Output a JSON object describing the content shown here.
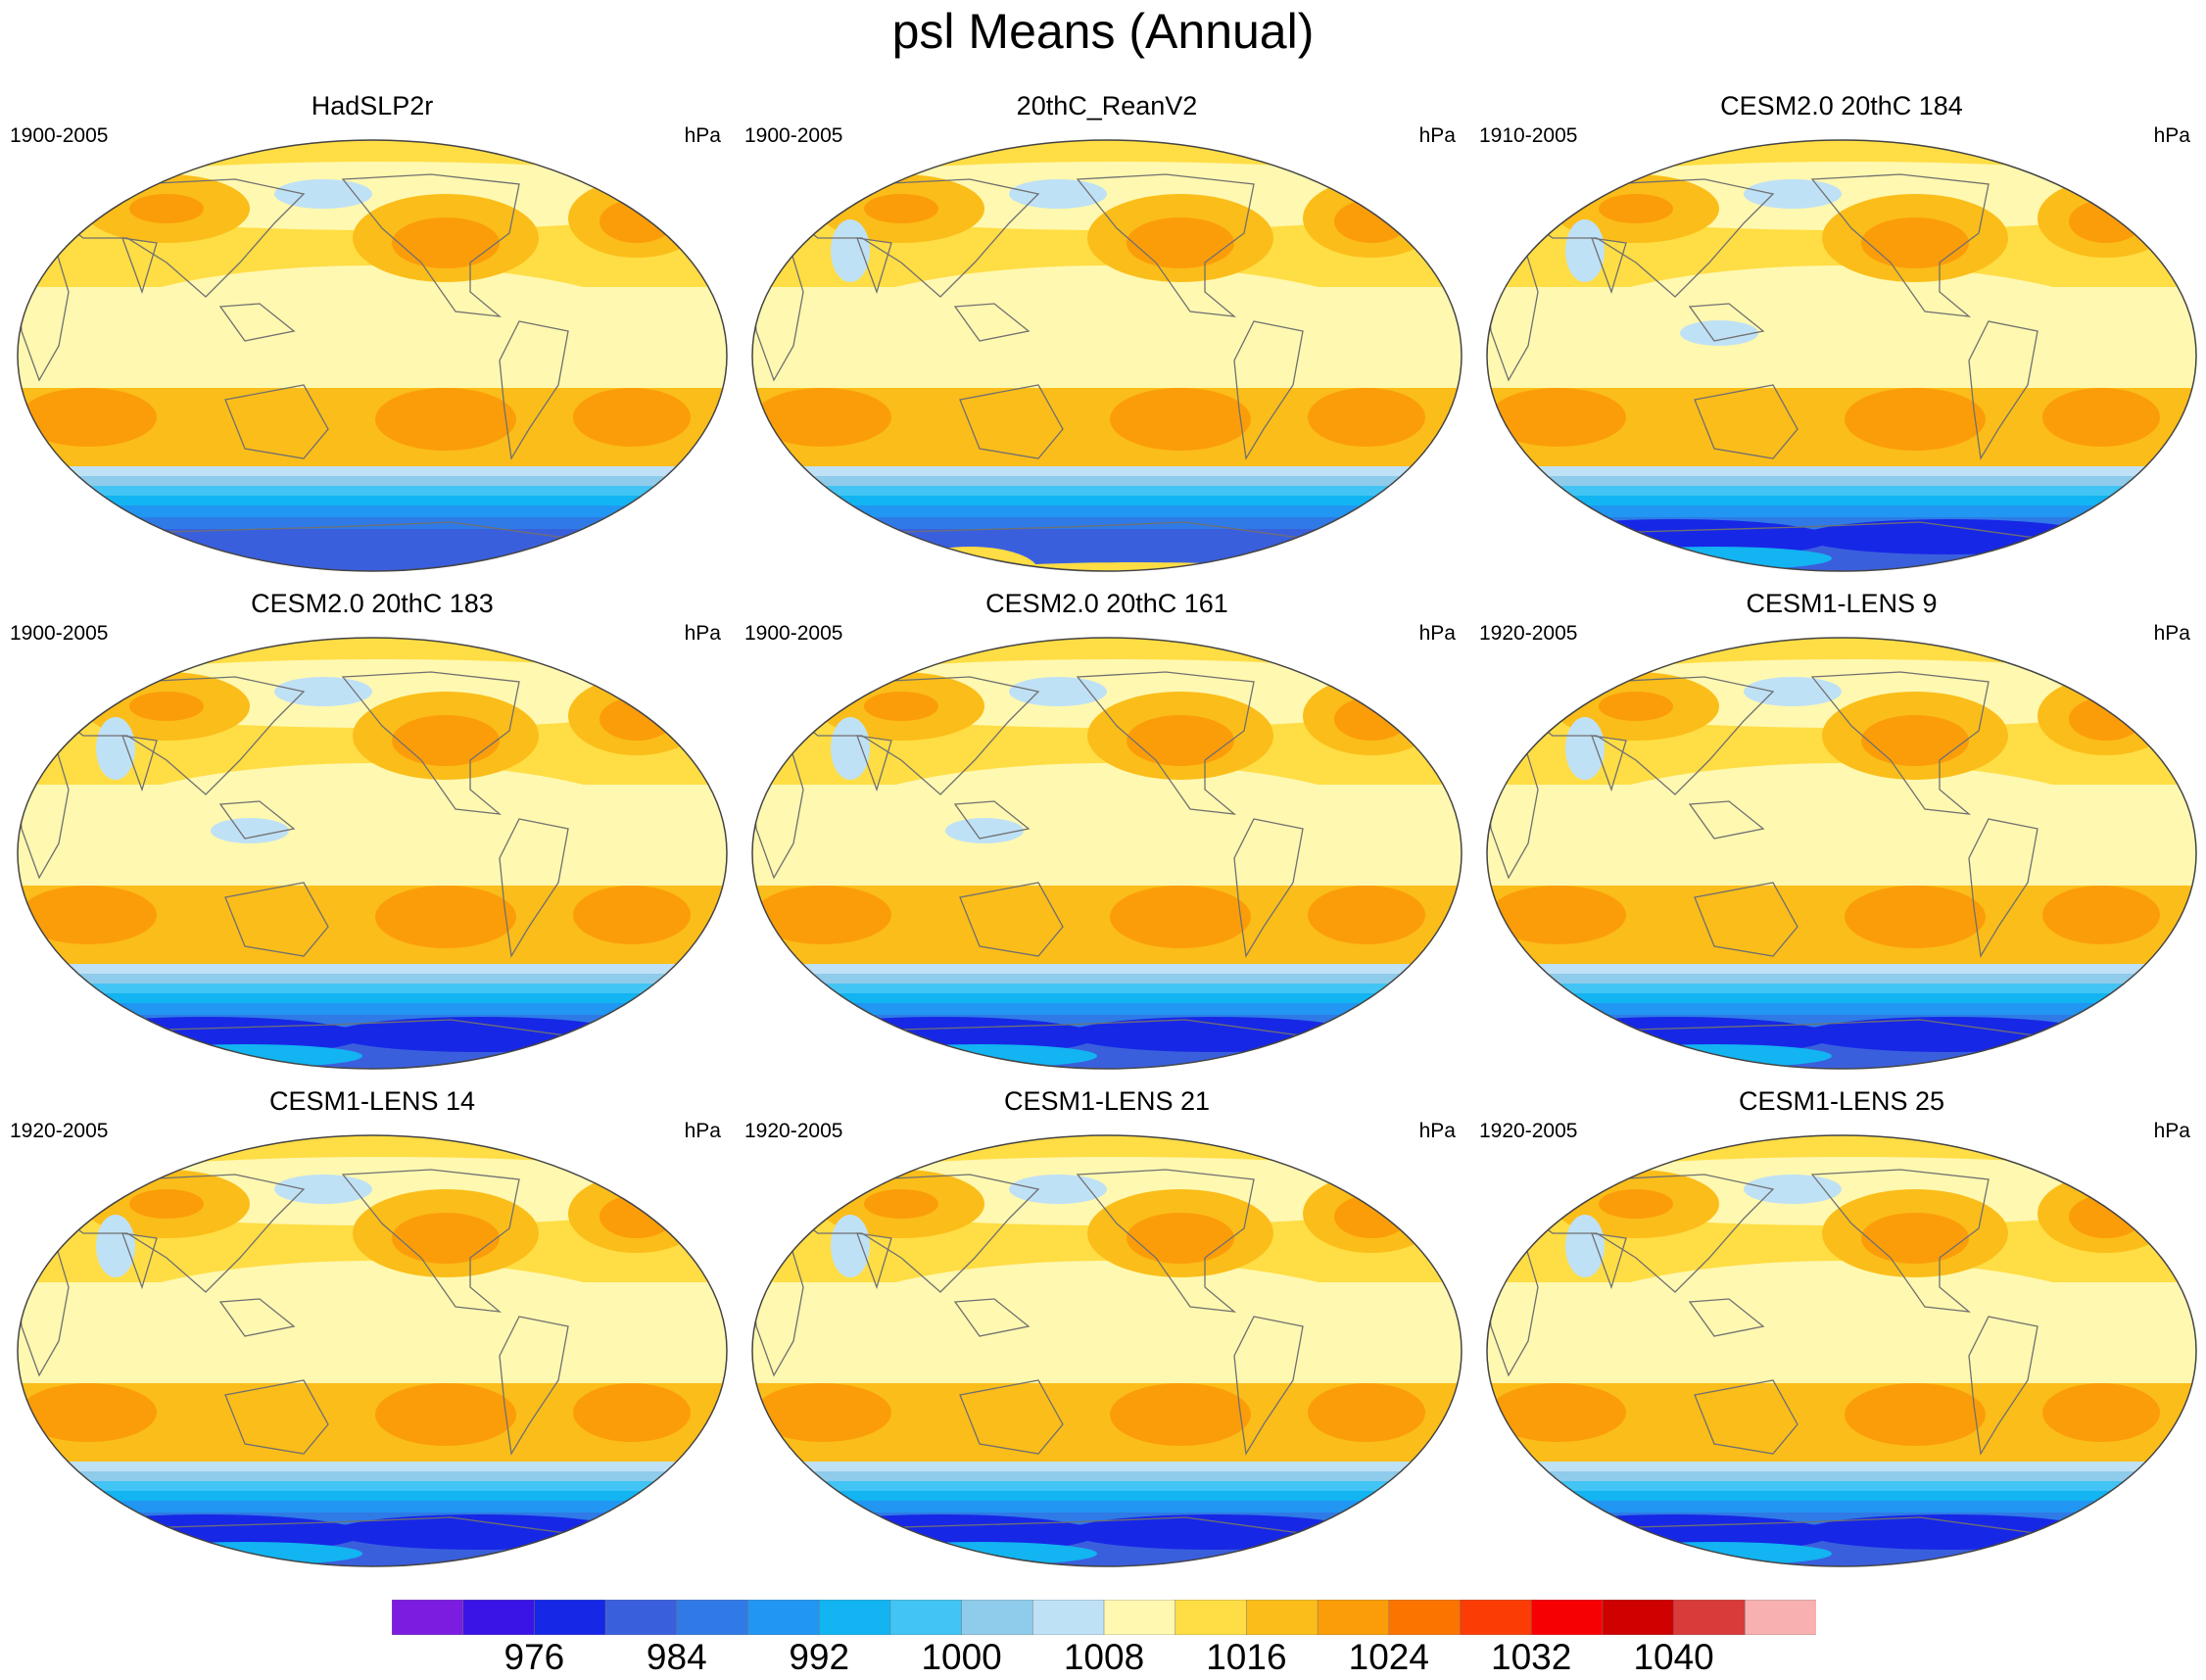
{
  "title": "psl Means (Annual)",
  "chart_data": {
    "type": "heatmap",
    "description_kind": "global mean sea level pressure maps, Robinson-like projection",
    "variable": "psl",
    "units": "hPa",
    "panels": [
      {
        "title": "HadSLP2r",
        "period": "1900-2005",
        "units": "hPa",
        "variant": "obs"
      },
      {
        "title": "20thC_ReanV2",
        "period": "1900-2005",
        "units": "hPa",
        "variant": "rean"
      },
      {
        "title": "CESM2.0 20thC 184",
        "period": "1910-2005",
        "units": "hPa",
        "variant": "cesm2"
      },
      {
        "title": "CESM2.0 20thC 183",
        "period": "1900-2005",
        "units": "hPa",
        "variant": "cesm2"
      },
      {
        "title": "CESM2.0 20thC 161",
        "period": "1900-2005",
        "units": "hPa",
        "variant": "cesm2"
      },
      {
        "title": "CESM1-LENS 9",
        "period": "1920-2005",
        "units": "hPa",
        "variant": "cesm1"
      },
      {
        "title": "CESM1-LENS 14",
        "period": "1920-2005",
        "units": "hPa",
        "variant": "cesm1"
      },
      {
        "title": "CESM1-LENS 21",
        "period": "1920-2005",
        "units": "hPa",
        "variant": "cesm1"
      },
      {
        "title": "CESM1-LENS 25",
        "period": "1920-2005",
        "units": "hPa",
        "variant": "cesm1"
      }
    ],
    "colorbar": {
      "levels": [
        972,
        976,
        980,
        984,
        988,
        992,
        996,
        1000,
        1004,
        1008,
        1012,
        1016,
        1020,
        1024,
        1028,
        1032,
        1036,
        1040,
        1044
      ],
      "labels": [
        "976",
        "984",
        "992",
        "1000",
        "1008",
        "1016",
        "1024",
        "1032",
        "1040"
      ],
      "colors": [
        "#7b1ce0",
        "#3a14e6",
        "#1727e6",
        "#3a5fdd",
        "#2f7ae6",
        "#2196f2",
        "#12b4f2",
        "#42c4f4",
        "#8fcbea",
        "#bfe1f6",
        "#fff8b0",
        "#ffdd44",
        "#fbbd19",
        "#fb9d09",
        "#fb7400",
        "#fb3c05",
        "#f70004",
        "#cf0000",
        "#d93a3a",
        "#f8b0b0"
      ]
    }
  }
}
